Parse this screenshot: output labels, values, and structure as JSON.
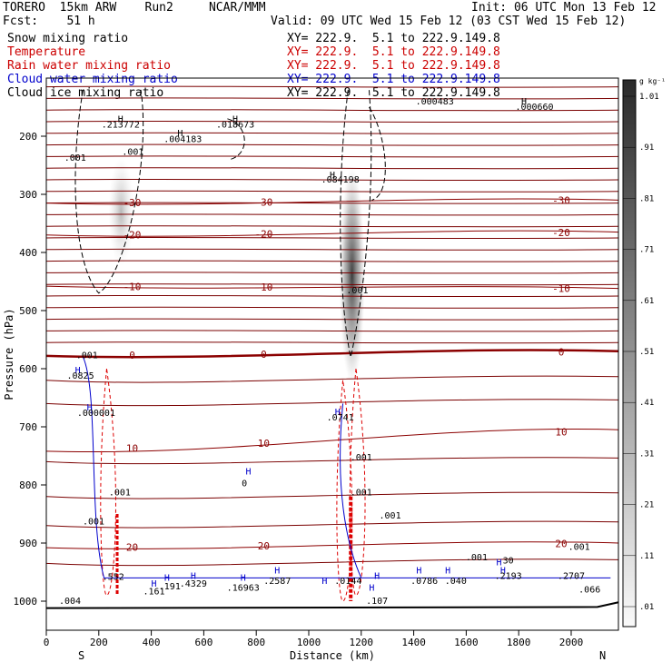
{
  "header": {
    "model": "TORERO  15km ARW    Run2     NCAR/MMM",
    "init": "Init: 06 UTC Mon 13 Feb 12",
    "fcst": "Fcst:    51 h",
    "valid": "Valid: 09 UTC Wed 15 Feb 12 (03 CST Wed 15 Feb 12)"
  },
  "fields": [
    {
      "name": "Snow mixing ratio",
      "color": "#000000"
    },
    {
      "name": "Temperature",
      "color": "#cc0000"
    },
    {
      "name": "Rain water mixing ratio",
      "color": "#cc0000"
    },
    {
      "name": "Cloud water mixing ratio",
      "color": "#0000cc"
    },
    {
      "name": "Cloud ice mixing ratio",
      "color": "#000000"
    }
  ],
  "xy_text": "XY= 222.9.  5.1 to 222.9.149.8",
  "chart_data": {
    "type": "heatmap",
    "xlabel": "Distance (km)",
    "ylabel": "Pressure (hPa)",
    "x_ticks": [
      0,
      200,
      400,
      600,
      800,
      1000,
      1200,
      1400,
      1600,
      1800,
      2000
    ],
    "y_ticks": [
      200,
      300,
      400,
      500,
      600,
      700,
      800,
      900,
      1000
    ],
    "xlim": [
      0,
      2180
    ],
    "ylim": [
      1050,
      100
    ],
    "left_label": "S",
    "right_label": "N",
    "colorbar": {
      "unit": "g kg⁻¹",
      "ticks": [
        ".01",
        ".11",
        ".21",
        ".31",
        ".41",
        ".51",
        ".61",
        ".71",
        ".81",
        ".91",
        "1.01"
      ]
    },
    "temperature_isotherms": [
      {
        "label": "-30",
        "p_left": 315,
        "p_right": 310
      },
      {
        "label": "-20",
        "p_left": 370,
        "p_right": 365
      },
      {
        "label": "-10",
        "p_left": 458,
        "p_right": 462
      },
      {
        "label": "0",
        "p_left": 578,
        "p_right": 570
      },
      {
        "label": "10",
        "p_left": 742,
        "p_right": 705
      },
      {
        "label": "20",
        "p_left": 908,
        "p_right": 900
      }
    ],
    "extrema_labels": [
      {
        "text": ".001",
        "x": 110,
        "p": 242
      },
      {
        "text": ".001",
        "x": 330,
        "p": 232
      },
      {
        "text": "H",
        "x": 283,
        "p": 176
      },
      {
        "text": ".213772",
        "x": 283,
        "p": 185
      },
      {
        "text": "H",
        "x": 510,
        "p": 200
      },
      {
        "text": ".004183",
        "x": 520,
        "p": 210
      },
      {
        "text": "H",
        "x": 720,
        "p": 176
      },
      {
        "text": ".018673",
        "x": 720,
        "p": 185
      },
      {
        "text": "H",
        "x": 1090,
        "p": 272
      },
      {
        "text": ".084198",
        "x": 1120,
        "p": 280
      },
      {
        "text": ".001",
        "x": 1185,
        "p": 470
      },
      {
        "text": ".000483",
        "x": 1480,
        "p": 145
      },
      {
        "text": "H",
        "x": 1820,
        "p": 145
      },
      {
        "text": ".000660",
        "x": 1860,
        "p": 155
      },
      {
        "text": ".001",
        "x": 155,
        "p": 582
      },
      {
        "text": "H",
        "x": 120,
        "p": 608
      },
      {
        "text": ".0825",
        "x": 130,
        "p": 617
      },
      {
        "text": "H",
        "x": 165,
        "p": 672
      },
      {
        "text": ".000001",
        "x": 190,
        "p": 681
      },
      {
        "text": "H",
        "x": 1110,
        "p": 680
      },
      {
        "text": ".0741",
        "x": 1120,
        "p": 689
      },
      {
        "text": ".001",
        "x": 1200,
        "p": 758
      },
      {
        "text": ".001",
        "x": 1200,
        "p": 818
      },
      {
        "text": ".001",
        "x": 280,
        "p": 818
      },
      {
        "text": "H",
        "x": 770,
        "p": 782
      },
      {
        "text": "0",
        "x": 755,
        "p": 802
      },
      {
        "text": ".001",
        "x": 180,
        "p": 868
      },
      {
        "text": ".001",
        "x": 1310,
        "p": 858
      },
      {
        "text": ".001",
        "x": 1640,
        "p": 930
      },
      {
        "text": ".001",
        "x": 2030,
        "p": 912
      },
      {
        "text": ".552",
        "x": 255,
        "p": 963
      },
      {
        "text": "H",
        "x": 410,
        "p": 975
      },
      {
        "text": ".161",
        "x": 410,
        "p": 988
      },
      {
        "text": "H",
        "x": 460,
        "p": 965
      },
      {
        "text": ".191",
        "x": 470,
        "p": 980
      },
      {
        "text": "H",
        "x": 560,
        "p": 962
      },
      {
        "text": ".4329",
        "x": 560,
        "p": 975
      },
      {
        "text": "H",
        "x": 750,
        "p": 965
      },
      {
        "text": ".16963",
        "x": 750,
        "p": 982
      },
      {
        "text": "H",
        "x": 880,
        "p": 952
      },
      {
        "text": ".2587",
        "x": 880,
        "p": 970
      },
      {
        "text": ".0144",
        "x": 1150,
        "p": 970
      },
      {
        "text": "H",
        "x": 1240,
        "p": 982
      },
      {
        "text": "H",
        "x": 1260,
        "p": 962
      },
      {
        "text": "H",
        "x": 1420,
        "p": 952
      },
      {
        "text": ".0786",
        "x": 1440,
        "p": 970
      },
      {
        "text": "H",
        "x": 1530,
        "p": 952
      },
      {
        "text": ".040",
        "x": 1560,
        "p": 970
      },
      {
        "text": "H",
        "x": 1740,
        "p": 952
      },
      {
        "text": ".2193",
        "x": 1760,
        "p": 962
      },
      {
        "text": ".107",
        "x": 1260,
        "p": 1005
      },
      {
        "text": ".004",
        "x": 90,
        "p": 1005
      },
      {
        "text": ".2707",
        "x": 2000,
        "p": 962
      },
      {
        "text": ".066",
        "x": 2070,
        "p": 985
      },
      {
        "text": "30",
        "x": 1760,
        "p": 935
      },
      {
        "text": "H",
        "x": 1725,
        "p": 938
      },
      {
        "text": "H",
        "x": 1060,
        "p": 970
      }
    ]
  }
}
